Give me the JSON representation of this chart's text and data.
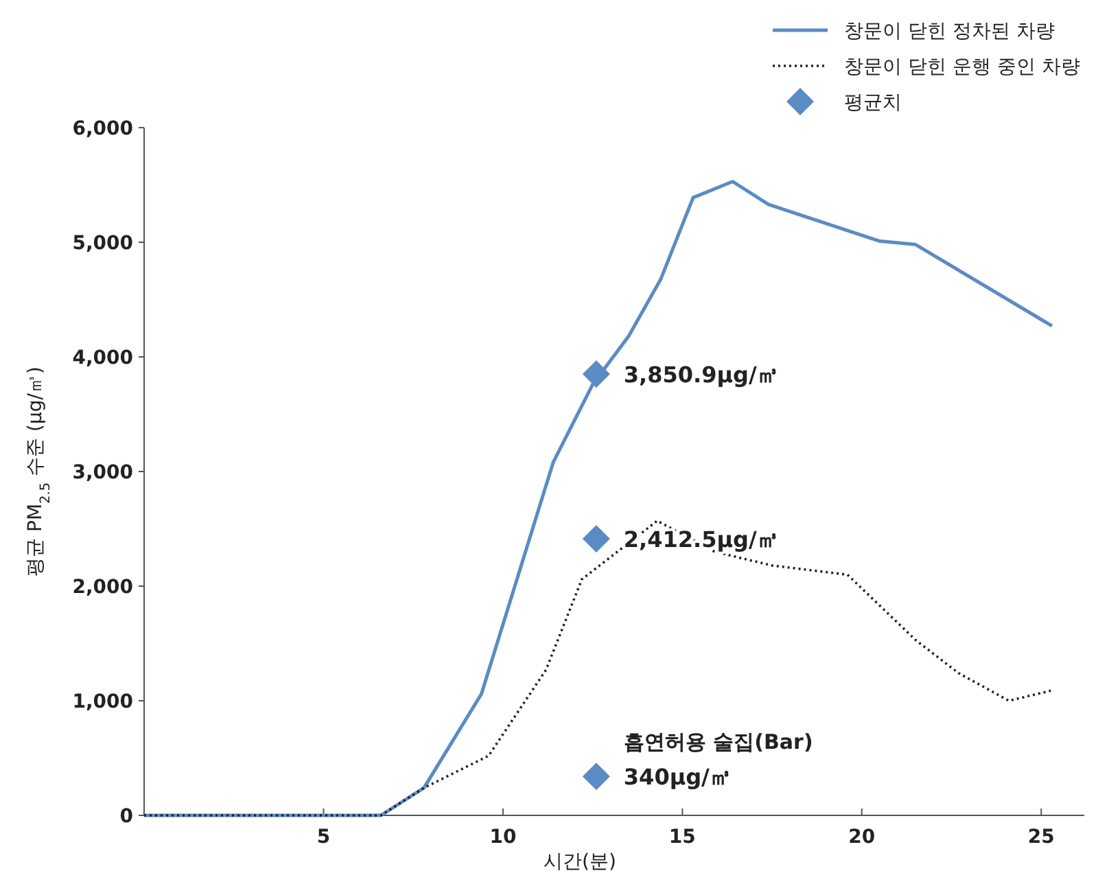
{
  "chart_data": {
    "type": "line",
    "xlabel": "시간(분)",
    "ylabel": "평균 PM$_{2.5}$  수준 (μg/㎥)",
    "xlim": [
      0,
      26.2
    ],
    "xticks": [
      5,
      10,
      15,
      20,
      25
    ],
    "ylim": [
      0,
      6000
    ],
    "yticks": [
      {
        "value": 0,
        "label": "0"
      },
      {
        "value": 1000,
        "label": "1,000"
      },
      {
        "value": 2000,
        "label": "2,000"
      },
      {
        "value": 3000,
        "label": "3,000"
      },
      {
        "value": 4000,
        "label": "4,000"
      },
      {
        "value": 5000,
        "label": "5,000"
      },
      {
        "value": 6000,
        "label": "6,000"
      }
    ],
    "grid": false,
    "legend": "top right",
    "series": [
      {
        "name": "창문이 닫힌 정차된 차량",
        "color": "#5b8bc4",
        "line_style": "solid",
        "x": [
          0,
          6.6,
          7.8,
          9.4,
          11.4,
          12.5,
          13.5,
          14.4,
          15.3,
          16.4,
          17.4,
          20.5,
          21.5,
          25.3
        ],
        "values": [
          0,
          0,
          240,
          1060,
          3080,
          3760,
          4180,
          4680,
          5390,
          5530,
          5330,
          5010,
          4980,
          4270
        ]
      },
      {
        "name": "창문이 닫힌 운행 중인 차량",
        "color": "#222222",
        "line_style": "dotted",
        "x": [
          0,
          6.6,
          7.8,
          9.6,
          11.2,
          12.2,
          14.3,
          15.9,
          17.5,
          19.6,
          21.5,
          22.7,
          24.1,
          25.3
        ],
        "values": [
          0,
          0,
          240,
          520,
          1270,
          2060,
          2570,
          2300,
          2180,
          2100,
          1530,
          1240,
          1000,
          1090
        ]
      },
      {
        "name": "평균치",
        "type": "scatter",
        "marker": "diamond",
        "color": "#5b8bc4",
        "x": [
          12.6,
          12.6,
          12.6
        ],
        "values": [
          3850.9,
          2412.5,
          340
        ],
        "value_labels": [
          "3,850.9μg/㎥",
          "2,412.5μg/㎥",
          "340μg/㎥"
        ]
      }
    ],
    "annotations": [
      {
        "text": "흡연허용 술집(Bar)",
        "x": 12.6,
        "y": 340
      }
    ]
  }
}
